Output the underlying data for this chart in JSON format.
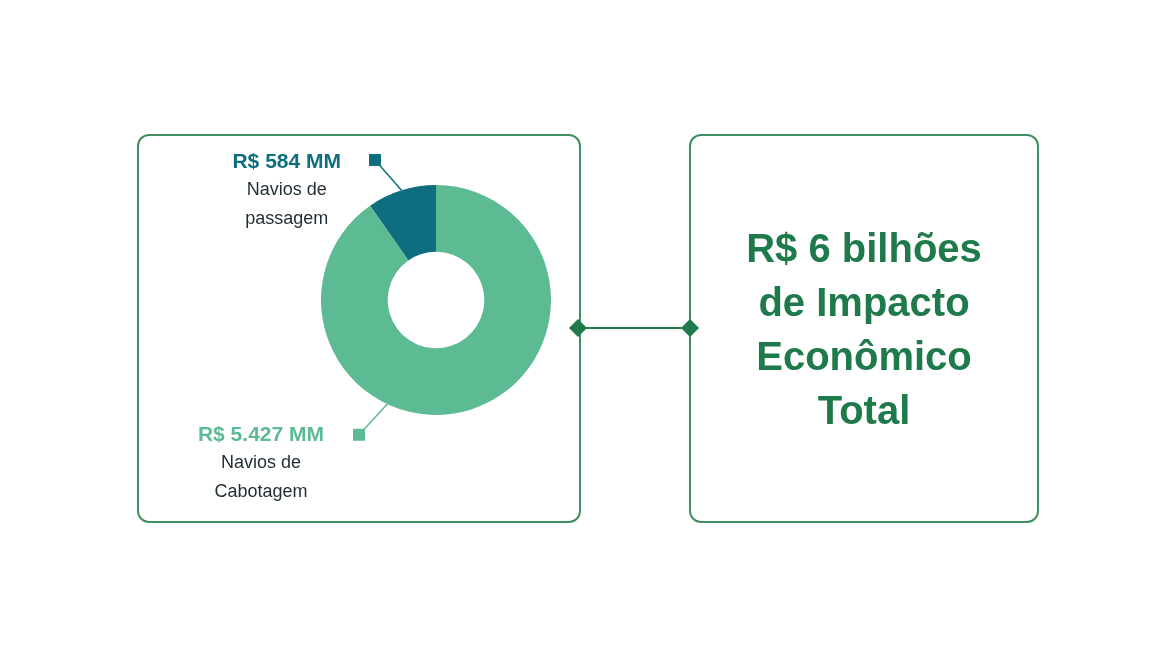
{
  "chart_data": [
    {
      "type": "donut",
      "categories": [
        "Navios de passagem",
        "Navios de Cabotagem"
      ],
      "values": [
        584,
        5427
      ],
      "colors": [
        "#0e6e80",
        "#5dbb93"
      ],
      "value_labels": [
        "R$ 584 MM",
        "R$ 5.427 MM"
      ]
    },
    {
      "type": "other",
      "title": "R$ 6 bilhões de Impacto Econômico Total"
    }
  ]
}
